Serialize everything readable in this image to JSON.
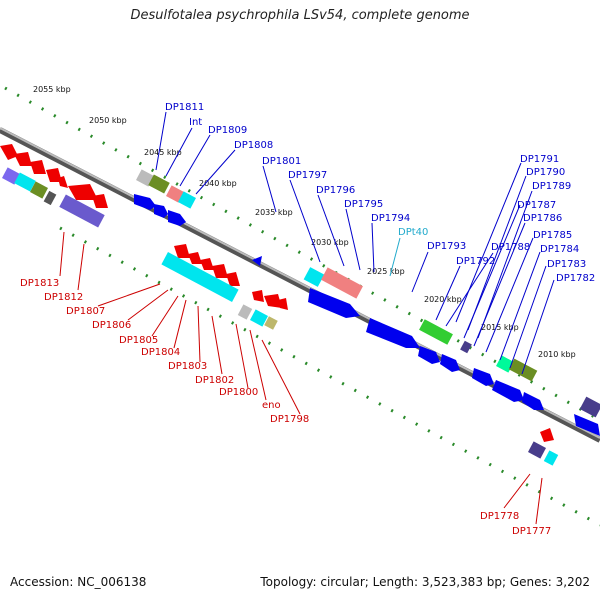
{
  "title": "Desulfotalea psychrophila LSv54, complete genome",
  "footer": {
    "accession": "Accession: NC_006138",
    "topology": "Topology: circular; Length: 3,523,383 bp; Genes: 3,202"
  },
  "colors": {
    "forward": "#0000ee",
    "reverse": "#dd0000",
    "rna": "#22aacc",
    "backbone": "#888888"
  },
  "scale_ticks": [
    "2055 kbp",
    "2050 kbp",
    "2045 kbp",
    "2040 kbp",
    "2035 kbp",
    "2030 kbp",
    "2025 kbp",
    "2020 kbp",
    "2015 kbp",
    "2010 kbp"
  ],
  "labels_top": [
    "DP1811",
    "Int",
    "DP1809",
    "DP1808",
    "DP1801",
    "DP1797",
    "DP1796",
    "DP1795",
    "DP1794",
    "DPt40",
    "DP1793",
    "DP1792",
    "DP1788",
    "DP1787",
    "DP1786",
    "DP1785",
    "DP1784",
    "DP1783",
    "DP1782",
    "DP1791",
    "DP1790",
    "DP1789"
  ],
  "labels_bottom": [
    "DP1813",
    "DP1812",
    "DP1807",
    "DP1806",
    "DP1805",
    "DP1804",
    "DP1803",
    "DP1802",
    "DP1800",
    "eno",
    "DP1798",
    "DP1778",
    "DP1777"
  ]
}
